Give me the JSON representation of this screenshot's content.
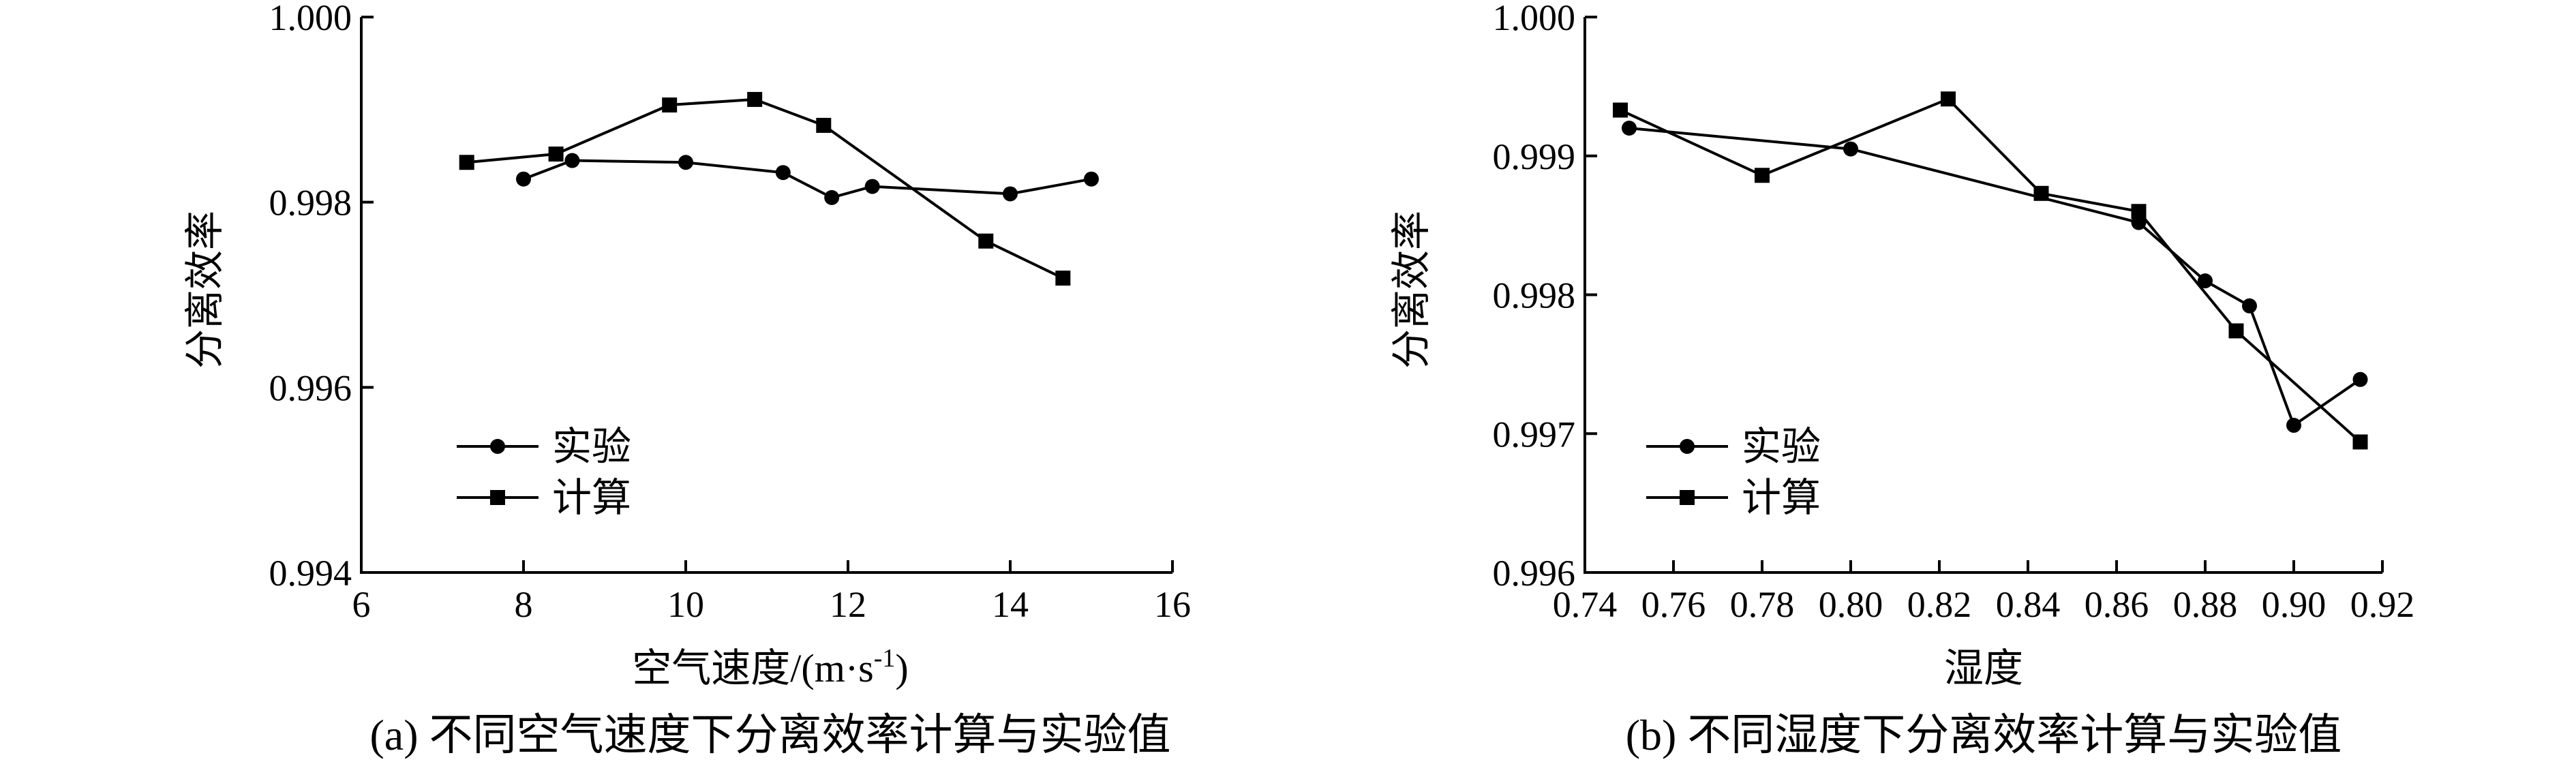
{
  "chart_data": [
    {
      "type": "line",
      "caption": "(a) 不同空气速度下分离效率计算与实验值",
      "xlabel": "空气速度/(m·s",
      "xlabel_sup": "-1",
      "xlabel_end": ")",
      "ylabel": "分离效率",
      "xlim": [
        6,
        16
      ],
      "ylim": [
        0.994,
        1.0
      ],
      "xticks": [
        6,
        8,
        10,
        12,
        14,
        16
      ],
      "xtick_labels": [
        "6",
        "8",
        "10",
        "12",
        "14",
        "16"
      ],
      "yticks": [
        0.994,
        0.996,
        0.998,
        1.0
      ],
      "ytick_labels": [
        "0.994",
        "0.996",
        "0.998",
        "1.000"
      ],
      "legend_position": "lower-left",
      "series": [
        {
          "name": "实验",
          "marker": "circle",
          "x": [
            8.0,
            8.6,
            10.0,
            11.2,
            11.8,
            12.3,
            14.0,
            15.0
          ],
          "y": [
            0.99825,
            0.99845,
            0.99843,
            0.99832,
            0.99805,
            0.99817,
            0.99809,
            0.99825
          ]
        },
        {
          "name": "计算",
          "marker": "square",
          "x": [
            7.3,
            8.4,
            9.8,
            10.85,
            11.7,
            13.7,
            14.65
          ],
          "y": [
            0.99843,
            0.99852,
            0.99905,
            0.99911,
            0.99883,
            0.99758,
            0.99718
          ]
        }
      ]
    },
    {
      "type": "line",
      "caption": "(b) 不同湿度下分离效率计算与实验值",
      "xlabel": "湿度",
      "ylabel": "分离效率",
      "xlim": [
        0.74,
        0.92
      ],
      "ylim": [
        0.996,
        1.0
      ],
      "xticks": [
        0.74,
        0.76,
        0.78,
        0.8,
        0.82,
        0.84,
        0.86,
        0.88,
        0.9,
        0.92
      ],
      "xtick_labels": [
        "0.74",
        "0.76",
        "0.78",
        "0.80",
        "0.82",
        "0.84",
        "0.86",
        "0.88",
        "0.90",
        "0.92"
      ],
      "yticks": [
        0.996,
        0.997,
        0.998,
        0.999,
        1.0
      ],
      "ytick_labels": [
        "0.996",
        "0.997",
        "0.998",
        "0.999",
        "1.000"
      ],
      "legend_position": "lower-left",
      "series": [
        {
          "name": "实验",
          "marker": "circle",
          "x": [
            0.75,
            0.8,
            0.865,
            0.88,
            0.89,
            0.9,
            0.915
          ],
          "y": [
            0.9992,
            0.99905,
            0.99852,
            0.9981,
            0.99792,
            0.99706,
            0.99739
          ]
        },
        {
          "name": "计算",
          "marker": "square",
          "x": [
            0.748,
            0.78,
            0.822,
            0.843,
            0.865,
            0.887,
            0.915
          ],
          "y": [
            0.99933,
            0.99886,
            0.99941,
            0.99873,
            0.9986,
            0.99774,
            0.99694
          ]
        }
      ]
    }
  ]
}
